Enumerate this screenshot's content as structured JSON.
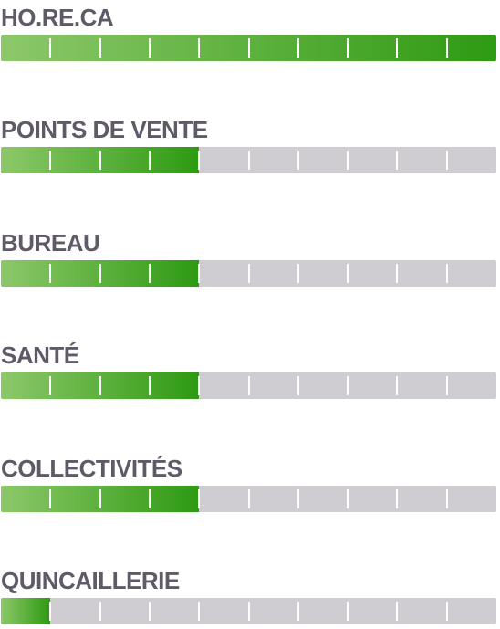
{
  "chart_data": {
    "type": "bar",
    "orientation": "horizontal",
    "segments": 10,
    "max": 10,
    "categories": [
      "HO.RE.CA",
      "POINTS DE VENTE",
      "BUREAU",
      "SANTÉ",
      "COLLECTIVITÉS",
      "QUINCAILLERIE"
    ],
    "values": [
      10,
      4,
      4,
      4,
      4,
      1
    ],
    "colors": {
      "fill_start": "#8dc86a",
      "fill_end": "#2e9a12",
      "track": "#cfccd2",
      "label": "#605a68",
      "tick": "#ffffff"
    }
  }
}
